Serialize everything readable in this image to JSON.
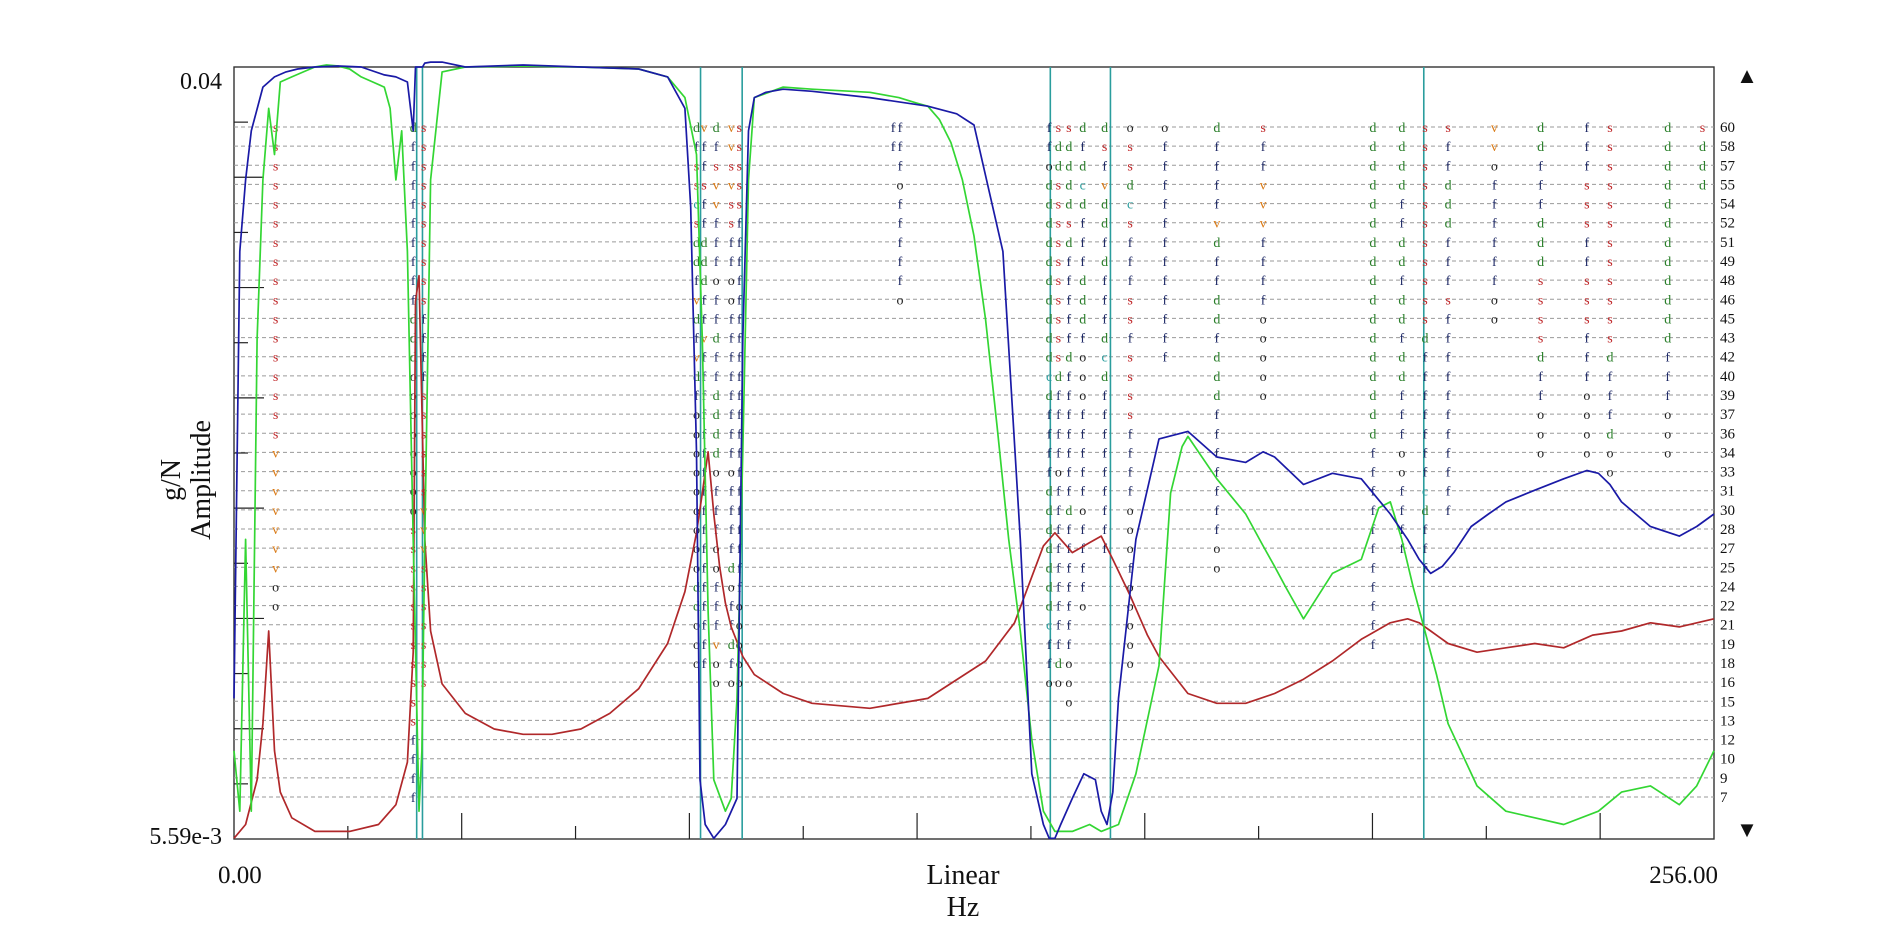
{
  "chart_data": {
    "type": "line",
    "x_scale": "linear",
    "y_scale": "log",
    "xlim": [
      0,
      256
    ],
    "ylim": [
      0.00559,
      0.04
    ],
    "x_tick_labels": {
      "start": "0.00",
      "end": "256.00"
    },
    "y_tick_labels": {
      "top": "0.04",
      "bottom": "5.59e-3"
    },
    "x_axis_labels": [
      "Linear",
      "Hz"
    ],
    "y_axis_labels": [
      "Amplitude",
      "g/N"
    ],
    "scroll_up_glyph": "▲",
    "scroll_down_glyph": "▼",
    "colors": {
      "blue": "#1a1aa6",
      "green": "#33d633",
      "red": "#b0282a",
      "cursor": "#2a9d9d",
      "grid": "#9a9a9a"
    },
    "cursor_lines_hz": [
      31.6,
      32.6,
      80.7,
      87.9,
      141.2,
      151.6,
      205.8
    ],
    "order_labels": [
      "60",
      "58",
      "57",
      "55",
      "54",
      "52",
      "51",
      "49",
      "48",
      "46",
      "45",
      "43",
      "42",
      "40",
      "39",
      "37",
      "36",
      "34",
      "33",
      "31",
      "30",
      "28",
      "27",
      "25",
      "24",
      "22",
      "21",
      "19",
      "18",
      "16",
      "15",
      "13",
      "12",
      "10",
      "9",
      "7"
    ],
    "series": [
      {
        "color": "blue",
        "x": [
          0,
          1,
          2,
          3,
          5,
          7,
          9,
          11,
          14,
          18,
          22,
          26,
          28,
          30,
          31,
          31.4,
          32.6,
          33,
          34,
          36,
          40,
          50,
          60,
          70,
          75,
          78,
          79,
          80,
          80.6,
          81.5,
          83,
          85,
          87,
          88,
          89,
          90,
          92,
          95,
          100,
          110,
          120,
          125,
          128,
          133,
          136,
          138,
          140,
          141,
          142,
          143,
          145,
          147,
          149,
          150,
          151,
          152,
          153,
          156,
          160,
          165,
          170,
          175,
          178,
          180,
          185,
          190,
          195,
          200,
          203,
          205,
          207,
          209,
          211,
          214,
          217,
          220,
          225,
          230,
          234,
          236,
          238,
          240,
          245,
          250,
          253,
          256
        ],
        "y": [
          0.008,
          0.025,
          0.03,
          0.034,
          0.038,
          0.039,
          0.0395,
          0.0398,
          0.04,
          0.0401,
          0.04,
          0.0392,
          0.039,
          0.0385,
          0.034,
          0.04,
          0.04,
          0.0404,
          0.0405,
          0.0405,
          0.04,
          0.0402,
          0.04,
          0.0398,
          0.039,
          0.036,
          0.028,
          0.015,
          0.0065,
          0.0058,
          0.0056,
          0.0058,
          0.0062,
          0.02,
          0.034,
          0.037,
          0.0375,
          0.0378,
          0.0376,
          0.037,
          0.0362,
          0.0355,
          0.0345,
          0.025,
          0.012,
          0.0066,
          0.0058,
          0.0056,
          0.0056,
          0.0058,
          0.0062,
          0.0066,
          0.0065,
          0.006,
          0.0058,
          0.0063,
          0.008,
          0.012,
          0.0155,
          0.0158,
          0.0148,
          0.0146,
          0.015,
          0.0148,
          0.0138,
          0.0142,
          0.014,
          0.0128,
          0.012,
          0.0114,
          0.011,
          0.0112,
          0.0116,
          0.0124,
          0.0128,
          0.0132,
          0.0136,
          0.014,
          0.0143,
          0.0142,
          0.0138,
          0.0132,
          0.0124,
          0.0121,
          0.0124,
          0.0128
        ]
      },
      {
        "color": "green",
        "x": [
          0,
          1,
          2,
          3,
          4,
          5,
          6,
          7,
          8,
          10,
          12,
          14,
          16,
          18,
          20,
          22,
          24,
          26,
          27,
          28,
          29,
          30,
          31,
          32,
          32.5,
          33,
          34,
          36,
          40,
          50,
          60,
          70,
          75,
          78,
          80,
          81,
          82,
          83,
          85,
          86,
          87,
          88,
          89,
          90,
          95,
          100,
          110,
          115,
          118,
          120,
          122,
          124,
          126,
          128,
          130,
          132,
          134,
          136,
          138,
          140,
          142,
          145,
          148,
          150,
          153,
          156,
          160,
          162,
          164,
          165,
          170,
          175,
          178,
          180,
          182,
          185,
          190,
          195,
          198,
          200,
          202,
          204,
          206,
          208,
          210,
          215,
          220,
          225,
          230,
          236,
          240,
          245,
          250,
          253,
          256
        ],
        "y": [
          0.007,
          0.006,
          0.012,
          0.006,
          0.02,
          0.03,
          0.036,
          0.032,
          0.0385,
          0.039,
          0.0395,
          0.04,
          0.0402,
          0.0401,
          0.0398,
          0.039,
          0.0385,
          0.038,
          0.036,
          0.03,
          0.034,
          0.025,
          0.012,
          0.006,
          0.007,
          0.012,
          0.03,
          0.0395,
          0.04,
          0.0401,
          0.04,
          0.0398,
          0.039,
          0.037,
          0.032,
          0.02,
          0.01,
          0.0065,
          0.006,
          0.0062,
          0.008,
          0.015,
          0.03,
          0.037,
          0.038,
          0.0378,
          0.0375,
          0.037,
          0.0365,
          0.0362,
          0.035,
          0.033,
          0.03,
          0.026,
          0.021,
          0.016,
          0.012,
          0.0095,
          0.0072,
          0.006,
          0.0057,
          0.0057,
          0.0058,
          0.0057,
          0.0058,
          0.0066,
          0.0087,
          0.0135,
          0.0152,
          0.0156,
          0.014,
          0.0128,
          0.0118,
          0.0112,
          0.0106,
          0.0098,
          0.011,
          0.0114,
          0.013,
          0.0132,
          0.012,
          0.0106,
          0.0095,
          0.0085,
          0.0075,
          0.0064,
          0.006,
          0.0059,
          0.0058,
          0.006,
          0.0063,
          0.0064,
          0.0061,
          0.0064,
          0.007
        ]
      },
      {
        "color": "red",
        "x": [
          0,
          2,
          4,
          5,
          6,
          7,
          8,
          10,
          14,
          20,
          25,
          28,
          30,
          31,
          31.4,
          32,
          33,
          34,
          36,
          40,
          45,
          50,
          55,
          60,
          65,
          70,
          75,
          78,
          80,
          81,
          82,
          83,
          84,
          85,
          86,
          88,
          90,
          95,
          100,
          110,
          120,
          130,
          135,
          140,
          142,
          145,
          148,
          150,
          152,
          155,
          158,
          160,
          165,
          170,
          175,
          180,
          185,
          190,
          195,
          200,
          203,
          205,
          207,
          210,
          215,
          220,
          225,
          230,
          235,
          240,
          245,
          250,
          256
        ],
        "y": [
          0.0056,
          0.0058,
          0.0065,
          0.0075,
          0.0095,
          0.007,
          0.0063,
          0.0059,
          0.0057,
          0.0057,
          0.0058,
          0.0061,
          0.0068,
          0.009,
          0.022,
          0.0235,
          0.012,
          0.0095,
          0.0083,
          0.0077,
          0.0074,
          0.0073,
          0.0073,
          0.0074,
          0.0077,
          0.0082,
          0.0092,
          0.0105,
          0.0122,
          0.0135,
          0.015,
          0.0128,
          0.0112,
          0.0102,
          0.0096,
          0.0089,
          0.0085,
          0.0081,
          0.0079,
          0.0078,
          0.008,
          0.0088,
          0.0097,
          0.0118,
          0.0122,
          0.0116,
          0.0119,
          0.0121,
          0.0114,
          0.0104,
          0.0094,
          0.0089,
          0.0081,
          0.0079,
          0.0079,
          0.0081,
          0.0084,
          0.0088,
          0.0093,
          0.0097,
          0.0098,
          0.0097,
          0.0095,
          0.0092,
          0.009,
          0.0091,
          0.0092,
          0.0091,
          0.0094,
          0.0095,
          0.0097,
          0.0096,
          0.0098
        ]
      }
    ],
    "order_marks": [
      {
        "x": 7.2,
        "chars": "sssssssssssssssssvvvvvvvoo"
      },
      {
        "x": 31.0,
        "chars": "dfffffffffdddoooooooosssssssssssffffoo"
      },
      {
        "x": 32.8,
        "chars": "ssssssssssffffssssssvvvsssssss"
      },
      {
        "x": 80.0,
        "chars": "dfsscsddfvdfvdfoooooooooddooo"
      },
      {
        "x": 81.3,
        "chars": "vffsffdddffvfffffffffffffffff"
      },
      {
        "x": 83.4,
        "chars": "dfsvvfffoffdffddddofffoofffvoo"
      },
      {
        "x": 86.0,
        "chars": "vvsvssffooffffffffoffffdoffdfo"
      },
      {
        "x": 87.4,
        "chars": "sssssffffffffffffffffffffooooo"
      },
      {
        "x": 114.0,
        "chars": "ff"
      },
      {
        "x": 115.2,
        "chars": "fffofffffo"
      },
      {
        "x": 141.0,
        "chars": "ffoddddddddddcdffffdddddddcffo"
      },
      {
        "x": 142.6,
        "chars": "sddssssssssssdffffofffffffffdo"
      },
      {
        "x": 144.4,
        "chars": "sddddsdfffffdfffffffdfffffffooo"
      },
      {
        "x": 146.8,
        "chars": "dfdcdfffdddfooofffffoffffo"
      },
      {
        "x": 150.6,
        "chars": "dsfvddfdfffdcdfffffffff"
      },
      {
        "x": 155.0,
        "chars": "ossdcsfffssfssssffffooofooooo"
      },
      {
        "x": 161.0,
        "chars": "offffffffffff"
      },
      {
        "x": 170.0,
        "chars": "dffffvdffddfdddfffffffoo"
      },
      {
        "x": 178.0,
        "chars": "sffvvvffffooooo"
      },
      {
        "x": 197.0,
        "chars": "dddddddddddddddddfffffffffff"
      },
      {
        "x": 202.0,
        "chars": "ddddffddfddfddfffooffff"
      },
      {
        "x": 206.0,
        "chars": "sssssssssssdfffffffcdfff"
      },
      {
        "x": 210.0,
        "chars": "sffdddfffsfffffffffff"
      },
      {
        "x": 218.0,
        "chars": "vvoffffffoo"
      },
      {
        "x": 226.0,
        "chars": "ddfffdddssssdffooo"
      },
      {
        "x": 234.0,
        "chars": "fffsssffsssfffoooo"
      },
      {
        "x": 238.0,
        "chars": "ssssssssssssdfffdoo"
      },
      {
        "x": 248.0,
        "chars": "ddddddddddddfffooo"
      },
      {
        "x": 254.0,
        "chars": "sddd"
      }
    ]
  }
}
